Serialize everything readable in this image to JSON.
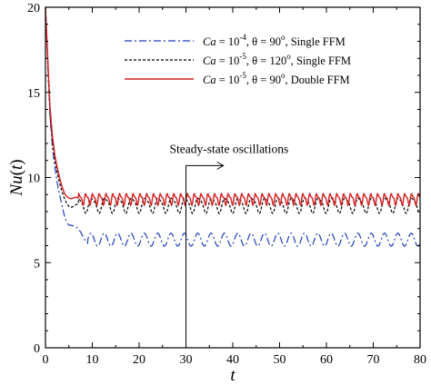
{
  "chart_data": {
    "type": "line",
    "xlabel": "t",
    "ylabel_main": "Nu",
    "ylabel_arg": "t",
    "xlim": [
      0,
      80
    ],
    "ylim": [
      0,
      20
    ],
    "x_ticks": [
      0,
      10,
      20,
      30,
      40,
      50,
      60,
      70,
      80
    ],
    "y_ticks": [
      0,
      5,
      10,
      15,
      20
    ],
    "grid": false,
    "legend_position": "top-right",
    "series": [
      {
        "name": "Ca = 10^-4, θ = 90°, Single FFM",
        "legend_parts": {
          "ca": "Ca",
          "base": " = 10",
          "exp": "-4",
          "theta": ", θ = 90",
          "deg": "o",
          "rest": ", Single FFM"
        },
        "color": "#1f3fbf",
        "dash": "8,3,2,3",
        "initial": {
          "x": [
            0,
            0.3,
            0.6,
            1,
            1.5,
            2,
            2.5,
            3,
            3.5,
            4,
            4.5,
            5,
            5.5,
            6,
            6.5,
            7,
            7.5,
            8,
            8.5,
            9
          ],
          "y": [
            20,
            18,
            16,
            13.5,
            11.8,
            10.6,
            9.7,
            9,
            8.4,
            7.8,
            7.4,
            7.2,
            7.2,
            7.15,
            7.1,
            7.0,
            6.8,
            6.55,
            6.3,
            6.15
          ]
        },
        "oscillation": {
          "start": 9,
          "end": 80,
          "mean": 6.35,
          "amplitude": 0.38,
          "period": 2.85,
          "phase": 0
        }
      },
      {
        "name": "Ca = 10^-5, θ = 120°, Single FFM",
        "legend_parts": {
          "ca": "Ca",
          "base": " = 10",
          "exp": "-5",
          "theta": ", θ = 120",
          "deg": "o",
          "rest": ", Single FFM"
        },
        "color": "#000000",
        "dash": "3,2",
        "initial": {
          "x": [
            0,
            0.3,
            0.6,
            1,
            1.5,
            2,
            2.5,
            3,
            3.5,
            4,
            4.5,
            5,
            5.5,
            6,
            6.5,
            7
          ],
          "y": [
            20,
            18,
            16,
            13.6,
            12,
            11,
            10.3,
            9.7,
            9.2,
            8.8,
            8.5,
            8.3,
            8.25,
            8.3,
            8.4,
            8.45
          ]
        },
        "oscillation": {
          "start": 7,
          "end": 80,
          "mean": 8.4,
          "amplitude": 0.42,
          "period": 2.85,
          "phase": 1.3
        }
      },
      {
        "name": "Ca = 10^-5, θ = 90°, Double FFM",
        "legend_parts": {
          "ca": "Ca",
          "base": " = 10",
          "exp": "-5",
          "theta": ", θ = 90",
          "deg": "o",
          "rest": ", Double FFM"
        },
        "color": "#d42020",
        "dash": "",
        "initial": {
          "x": [
            0,
            0.3,
            0.6,
            1,
            1.5,
            2,
            2.5,
            3,
            3.5,
            4,
            4.5,
            5,
            5.5,
            6,
            6.5,
            7
          ],
          "y": [
            20,
            18.2,
            16.3,
            14,
            12.4,
            11.3,
            10.6,
            10,
            9.5,
            9.1,
            8.9,
            8.8,
            8.75,
            8.8,
            8.85,
            8.8
          ]
        },
        "oscillation": {
          "start": 7,
          "end": 80,
          "mean": 8.75,
          "amplitude": 0.28,
          "period": 1.45,
          "phase": 0.4
        }
      }
    ],
    "annotation": {
      "text": "Steady-state oscillations",
      "line_x": 30,
      "y_top": 10.7,
      "y_bottom": 0,
      "arrow_to_x": 38
    }
  }
}
